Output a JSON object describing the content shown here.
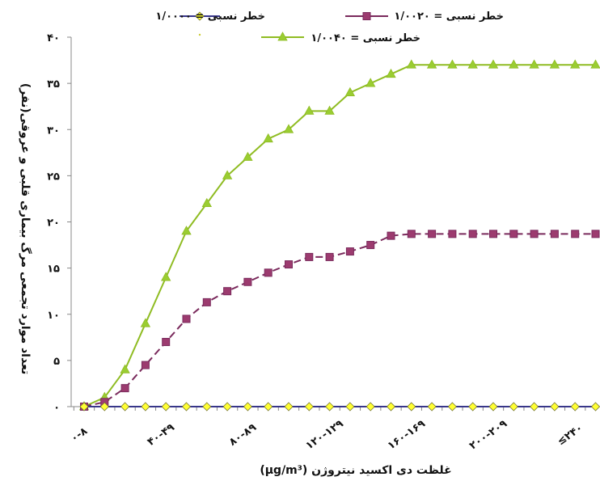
{
  "chart_data": {
    "type": "line",
    "xlabel": "(µg/m³) غلظت دی اکسید نیتروژن",
    "ylabel": "تعداد موارد تجمعی مرگ بیماری قلبی و عروقی(نفر)",
    "ylim": [
      0,
      40
    ],
    "yticks": [
      "۰",
      "۵",
      "۱۰",
      "۱۵",
      "۲۰",
      "۲۵",
      "۳۰",
      "۳۵",
      "۴۰"
    ],
    "ytick_values": [
      0,
      5,
      10,
      15,
      20,
      25,
      30,
      35,
      40
    ],
    "x_tick_labels": [
      {
        "label": "۰-۸",
        "index": 0
      },
      {
        "label": "۴۰-۴۹",
        "index": 4
      },
      {
        "label": "۸۰-۸۹",
        "index": 8
      },
      {
        "label": "۱۲۰-۱۲۹",
        "index": 12
      },
      {
        "label": "۱۶۰-۱۶۹",
        "index": 16
      },
      {
        "label": "۲۰۰-۲۰۹",
        "index": 20
      },
      {
        "label": "≤۲۴۰",
        "index": 24
      }
    ],
    "n_points": 26,
    "grid": false,
    "legend_position": "top",
    "series": [
      {
        "name": "خطر نسبی = ۱/۰۰۰۰",
        "color": "#38368a",
        "marker": "diamond",
        "marker_color": "#ffff33",
        "dash": "solid",
        "values": [
          0,
          0,
          0,
          0,
          0,
          0,
          0,
          0,
          0,
          0,
          0,
          0,
          0,
          0,
          0,
          0,
          0,
          0,
          0,
          0,
          0,
          0,
          0,
          0,
          0,
          0
        ]
      },
      {
        "name": "خطر نسبی = ۱/۰۰۲۰",
        "color": "#7a2a5c",
        "marker": "square",
        "marker_color": "#9c3b6f",
        "dash": "dashed",
        "values": [
          0,
          0.5,
          2,
          4.5,
          7,
          9.5,
          11.3,
          12.5,
          13.5,
          14.5,
          15.4,
          16.2,
          16.2,
          16.8,
          17.5,
          18.5,
          18.7,
          18.7,
          18.7,
          18.7,
          18.7,
          18.7,
          18.7,
          18.7,
          18.7,
          18.7
        ]
      },
      {
        "name": "خطر نسبی = ۱/۰۰۴۰",
        "color": "#8fbc22",
        "marker": "triangle",
        "marker_color": "#9acd32",
        "dash": "solid",
        "values": [
          0,
          1,
          4,
          9,
          14,
          19,
          22,
          25,
          27,
          29,
          30,
          32,
          32,
          34,
          35,
          36,
          37,
          37,
          37,
          37,
          37,
          37,
          37,
          37,
          37,
          37
        ]
      }
    ]
  }
}
